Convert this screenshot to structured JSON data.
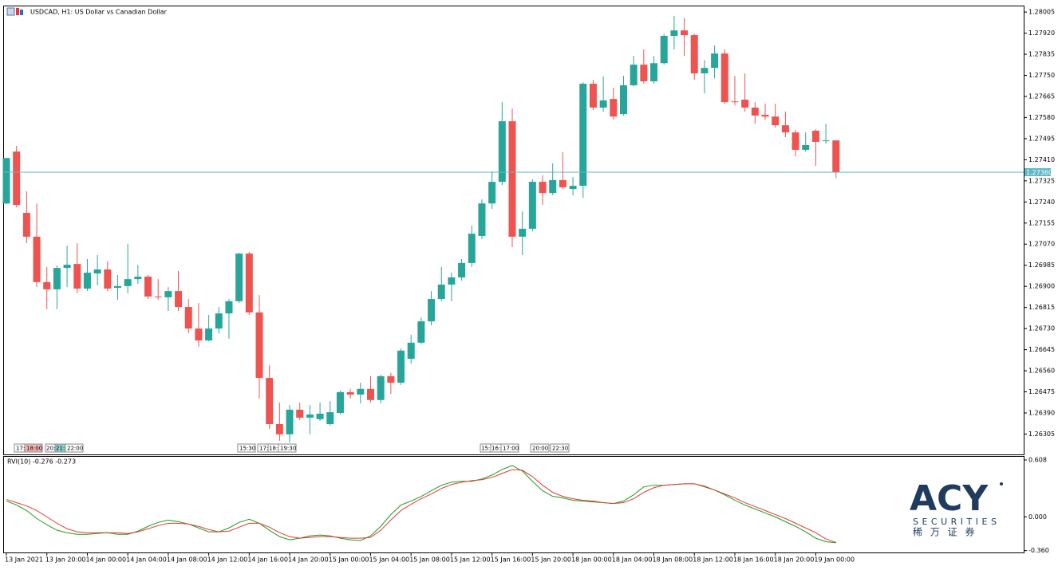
{
  "chart_data": [
    {
      "type": "candlestick",
      "title": "USDCAD, H1:  US Dollar vs Canadian Dollar",
      "x": [
        "13 Jan 2021",
        null,
        null,
        null,
        "13 Jan 20:00",
        null,
        null,
        null,
        "14 Jan 00:00",
        null,
        null,
        null,
        "14 Jan 04:00",
        null,
        null,
        null,
        "14 Jan 08:00",
        null,
        null,
        null,
        "14 Jan 12:00",
        null,
        null,
        null,
        "14 Jan 16:00",
        null,
        null,
        null,
        "14 Jan 20:00",
        null,
        null,
        null,
        "15 Jan 00:00",
        null,
        null,
        null,
        "15 Jan 04:00",
        null,
        null,
        null,
        "15 Jan 08:00",
        null,
        null,
        null,
        "15 Jan 12:00",
        null,
        null,
        null,
        "15 Jan 16:00",
        null,
        null,
        null,
        "15 Jan 20:00",
        null,
        null,
        null,
        "18 Jan 00:00",
        null,
        null,
        null,
        "18 Jan 04:00",
        null,
        null,
        null,
        "18 Jan 08:00",
        null,
        null,
        null,
        "18 Jan 12:00",
        null,
        null,
        null,
        "18 Jan 16:00",
        null,
        null,
        null,
        "18 Jan 20:00",
        null,
        null,
        null,
        "19 Jan 00:00",
        null,
        null
      ],
      "open": [
        1.27234,
        1.27443,
        1.27196,
        1.271,
        1.26917,
        1.26888,
        1.26974,
        1.2699,
        1.26891,
        1.26952,
        1.26968,
        1.26894,
        1.26901,
        1.26929,
        1.26939,
        1.26859,
        1.26856,
        1.26881,
        1.26817,
        1.2673,
        1.26682,
        1.2673,
        1.26791,
        1.2684,
        1.27032,
        1.26795,
        1.26531,
        1.26345,
        1.26304,
        1.26403,
        1.26371,
        1.26365,
        1.26345,
        1.2639,
        1.26474,
        1.26464,
        1.26487,
        1.26442,
        1.26538,
        1.26512,
        1.26608,
        1.26673,
        1.26759,
        1.26849,
        1.26907,
        1.26936,
        1.26994,
        1.27103,
        1.27234,
        1.27321,
        1.27565,
        1.271,
        1.27132,
        1.27321,
        1.27276,
        1.27328,
        1.27292,
        1.27305,
        1.27716,
        1.2762,
        1.27655,
        1.27594,
        1.2771,
        1.27793,
        1.27726,
        1.27799,
        1.27909,
        1.27931,
        1.27912,
        1.27758,
        1.2778,
        1.27838,
        1.27645,
        1.27652,
        1.2762,
        1.27591,
        1.27584,
        1.27549,
        1.2752,
        1.2745,
        1.27527,
        1.27485,
        1.27488
      ],
      "high": [
        1.27417,
        1.27466,
        1.27283,
        1.27234,
        1.26978,
        1.26984,
        1.27064,
        1.27074,
        1.2701,
        1.27026,
        1.27,
        1.26946,
        1.27071,
        1.26987,
        1.26946,
        1.26929,
        1.26897,
        1.26962,
        1.26849,
        1.26833,
        1.26785,
        1.26817,
        1.26849,
        1.27035,
        1.27039,
        1.26865,
        1.26583,
        1.26432,
        1.26422,
        1.26432,
        1.26422,
        1.26432,
        1.26438,
        1.2648,
        1.26487,
        1.26512,
        1.26538,
        1.26544,
        1.26551,
        1.2665,
        1.26705,
        1.26775,
        1.26881,
        1.26978,
        1.26955,
        1.2701,
        1.27145,
        1.2725,
        1.27363,
        1.27642,
        1.27616,
        1.27202,
        1.27331,
        1.27347,
        1.27395,
        1.2744,
        1.2734,
        1.27722,
        1.27732,
        1.27745,
        1.277,
        1.27748,
        1.27828,
        1.27854,
        1.27828,
        1.27918,
        1.27989,
        1.27982,
        1.27918,
        1.27812,
        1.2787,
        1.27854,
        1.27748,
        1.27758,
        1.27642,
        1.27636,
        1.27636,
        1.27604,
        1.2753,
        1.2752,
        1.27533,
        1.27555,
        1.27488
      ],
      "low": [
        1.27231,
        1.27218,
        1.27074,
        1.26897,
        1.26808,
        1.26808,
        1.26897,
        1.26872,
        1.26881,
        1.26904,
        1.26881,
        1.26846,
        1.26872,
        1.2691,
        1.26849,
        1.26846,
        1.26801,
        1.26801,
        1.26711,
        1.26657,
        1.26679,
        1.26711,
        1.26689,
        1.26833,
        1.26785,
        1.26448,
        1.26326,
        1.26278,
        1.26271,
        1.26361,
        1.26304,
        1.26358,
        1.26339,
        1.26384,
        1.26448,
        1.26429,
        1.26432,
        1.26429,
        1.26467,
        1.26503,
        1.26589,
        1.26666,
        1.26743,
        1.2684,
        1.2684,
        1.26923,
        1.26978,
        1.2709,
        1.27212,
        1.27308,
        1.27058,
        1.27026,
        1.27122,
        1.27228,
        1.27267,
        1.27292,
        1.27267,
        1.27257,
        1.2761,
        1.27604,
        1.27571,
        1.27588,
        1.27706,
        1.27716,
        1.27716,
        1.27793,
        1.27854,
        1.27828,
        1.27732,
        1.27677,
        1.27738,
        1.27636,
        1.27629,
        1.27604,
        1.27555,
        1.27571,
        1.27539,
        1.27501,
        1.27424,
        1.27443,
        1.27385,
        1.27475,
        1.27337
      ],
      "close": [
        1.27417,
        1.27228,
        1.271,
        1.26917,
        1.26888,
        1.26974,
        1.26987,
        1.26891,
        1.26955,
        1.26968,
        1.26891,
        1.26901,
        1.26929,
        1.26939,
        1.26859,
        1.26856,
        1.26881,
        1.26817,
        1.2673,
        1.26682,
        1.2673,
        1.26791,
        1.2684,
        1.27032,
        1.26795,
        1.26531,
        1.26345,
        1.26304,
        1.26403,
        1.26371,
        1.26384,
        1.26387,
        1.26393,
        1.26474,
        1.26464,
        1.26487,
        1.26442,
        1.26538,
        1.26512,
        1.26641,
        1.26673,
        1.26759,
        1.26849,
        1.26907,
        1.26936,
        1.26994,
        1.27112,
        1.27234,
        1.27321,
        1.27565,
        1.271,
        1.27132,
        1.27321,
        1.27276,
        1.27328,
        1.27299,
        1.27305,
        1.27716,
        1.2762,
        1.27649,
        1.27584,
        1.2771,
        1.27793,
        1.27726,
        1.27799,
        1.27909,
        1.27931,
        1.27912,
        1.27758,
        1.2778,
        1.27838,
        1.27642,
        1.27642,
        1.2762,
        1.27588,
        1.27584,
        1.27549,
        1.2752,
        1.2745,
        1.27469,
        1.27482,
        1.27488,
        1.2736
      ],
      "up_color": "#26a69a",
      "down_color": "#ef5350",
      "ylim": [
        1.26223,
        1.28031
      ],
      "yticks": [
        1.28005,
        {
          "value": 1.2792,
          "label": "1.27920"
        },
        1.27835,
        {
          "value": 1.2775,
          "label": "1.27750"
        },
        1.27665,
        {
          "value": 1.2758,
          "label": "1.27580"
        },
        1.27495,
        {
          "value": 1.2741,
          "label": "1.27410"
        },
        1.27325,
        {
          "value": 1.2724,
          "label": "1.27240"
        },
        1.27155,
        {
          "value": 1.2707,
          "label": "1.27070"
        },
        1.26985,
        {
          "value": 1.269,
          "label": "1.26900"
        },
        1.26815,
        {
          "value": 1.2673,
          "label": "1.26730"
        },
        1.26645,
        {
          "value": 1.2656,
          "label": "1.26560"
        },
        1.26475,
        {
          "value": 1.2639,
          "label": "1.26390"
        },
        1.26305
      ],
      "current_price": {
        "value": 1.2736,
        "label": "1.27360",
        "color": "#5fb8c4"
      }
    },
    {
      "type": "line",
      "title": "RVI(10) -0.276 -0.273",
      "series": [
        {
          "color": "#1e9a1e",
          "values": [
            0.169,
            0.127,
            0.068,
            -0.017,
            -0.084,
            -0.143,
            -0.169,
            -0.186,
            -0.186,
            -0.177,
            -0.169,
            -0.186,
            -0.186,
            -0.152,
            -0.101,
            -0.059,
            -0.034,
            -0.051,
            -0.076,
            -0.118,
            -0.16,
            -0.16,
            -0.118,
            -0.059,
            -0.025,
            -0.068,
            -0.143,
            -0.211,
            -0.245,
            -0.228,
            -0.203,
            -0.194,
            -0.203,
            -0.228,
            -0.245,
            -0.253,
            -0.203,
            -0.101,
            0.025,
            0.127,
            0.169,
            0.219,
            0.279,
            0.338,
            0.371,
            0.38,
            0.38,
            0.405,
            0.447,
            0.506,
            0.549,
            0.49,
            0.38,
            0.279,
            0.219,
            0.203,
            0.177,
            0.169,
            0.16,
            0.152,
            0.143,
            0.169,
            0.236,
            0.321,
            0.338,
            0.338,
            0.346,
            0.354,
            0.354,
            0.321,
            0.287,
            0.236,
            0.177,
            0.127,
            0.084,
            0.042,
            0,
            -0.051,
            -0.101,
            -0.16,
            -0.228,
            -0.265,
            -0.276
          ]
        },
        {
          "color": "#e53935",
          "values": [
            0.186,
            0.152,
            0.118,
            0.068,
            0,
            -0.068,
            -0.127,
            -0.16,
            -0.169,
            -0.169,
            -0.169,
            -0.169,
            -0.177,
            -0.16,
            -0.127,
            -0.093,
            -0.068,
            -0.068,
            -0.076,
            -0.101,
            -0.135,
            -0.16,
            -0.152,
            -0.11,
            -0.068,
            -0.068,
            -0.11,
            -0.169,
            -0.211,
            -0.228,
            -0.219,
            -0.211,
            -0.211,
            -0.219,
            -0.228,
            -0.228,
            -0.219,
            -0.143,
            -0.034,
            0.068,
            0.135,
            0.194,
            0.245,
            0.304,
            0.346,
            0.371,
            0.388,
            0.397,
            0.422,
            0.464,
            0.506,
            0.498,
            0.43,
            0.338,
            0.262,
            0.219,
            0.194,
            0.177,
            0.169,
            0.152,
            0.143,
            0.152,
            0.194,
            0.262,
            0.312,
            0.338,
            0.346,
            0.354,
            0.354,
            0.329,
            0.287,
            0.245,
            0.203,
            0.152,
            0.11,
            0.068,
            0.025,
            -0.017,
            -0.068,
            -0.118,
            -0.169,
            -0.236,
            -0.273
          ]
        }
      ],
      "ylim": [
        -0.38,
        0.642
      ],
      "yticks": [
        {
          "value": 0.608,
          "label": "0.608"
        },
        {
          "value": 0,
          "label": "0.000"
        },
        {
          "value": -0.36,
          "label": "-0.360"
        }
      ]
    }
  ],
  "event_markers": [
    "17:",
    "18:00",
    "20:",
    "21:",
    "22:00",
    "15:30",
    "17:",
    "18:",
    "19:30",
    "15:",
    "16:",
    "17:00",
    "20:00",
    "22:30"
  ],
  "logo": {
    "brand": "ACY",
    "sub": "SECURITIES",
    "cn": "稀 万 证 券"
  }
}
